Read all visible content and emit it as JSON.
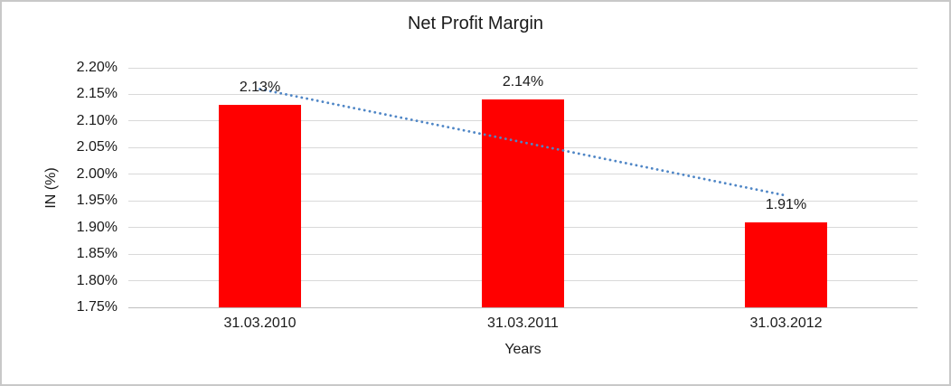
{
  "chart_data": {
    "type": "bar",
    "title": "Net Profit Margin",
    "xlabel": "Years",
    "ylabel": "IN (%)",
    "categories": [
      "31.03.2010",
      "31.03.2011",
      "31.03.2012"
    ],
    "values": [
      2.13,
      2.14,
      1.91
    ],
    "data_labels": [
      "2.13%",
      "2.14%",
      "1.91%"
    ],
    "ylim": [
      1.75,
      2.2
    ],
    "ytick_step": 0.05,
    "ytick_labels": [
      "2.20%",
      "2.15%",
      "2.10%",
      "2.05%",
      "2.00%",
      "1.95%",
      "1.90%",
      "1.85%",
      "1.80%",
      "1.75%"
    ],
    "grid": true,
    "legend": "none",
    "trendline": {
      "style": "dotted",
      "start_value": 2.16,
      "end_value": 1.96
    },
    "colors": {
      "bar": "#FF0000",
      "trendline": "#4F86C6",
      "gridline": "#D9D9D9",
      "axis_line": "#BFBFBF",
      "text": "#1A1A1A",
      "background": "#FFFFFF",
      "border": "#C8C8C8"
    }
  }
}
